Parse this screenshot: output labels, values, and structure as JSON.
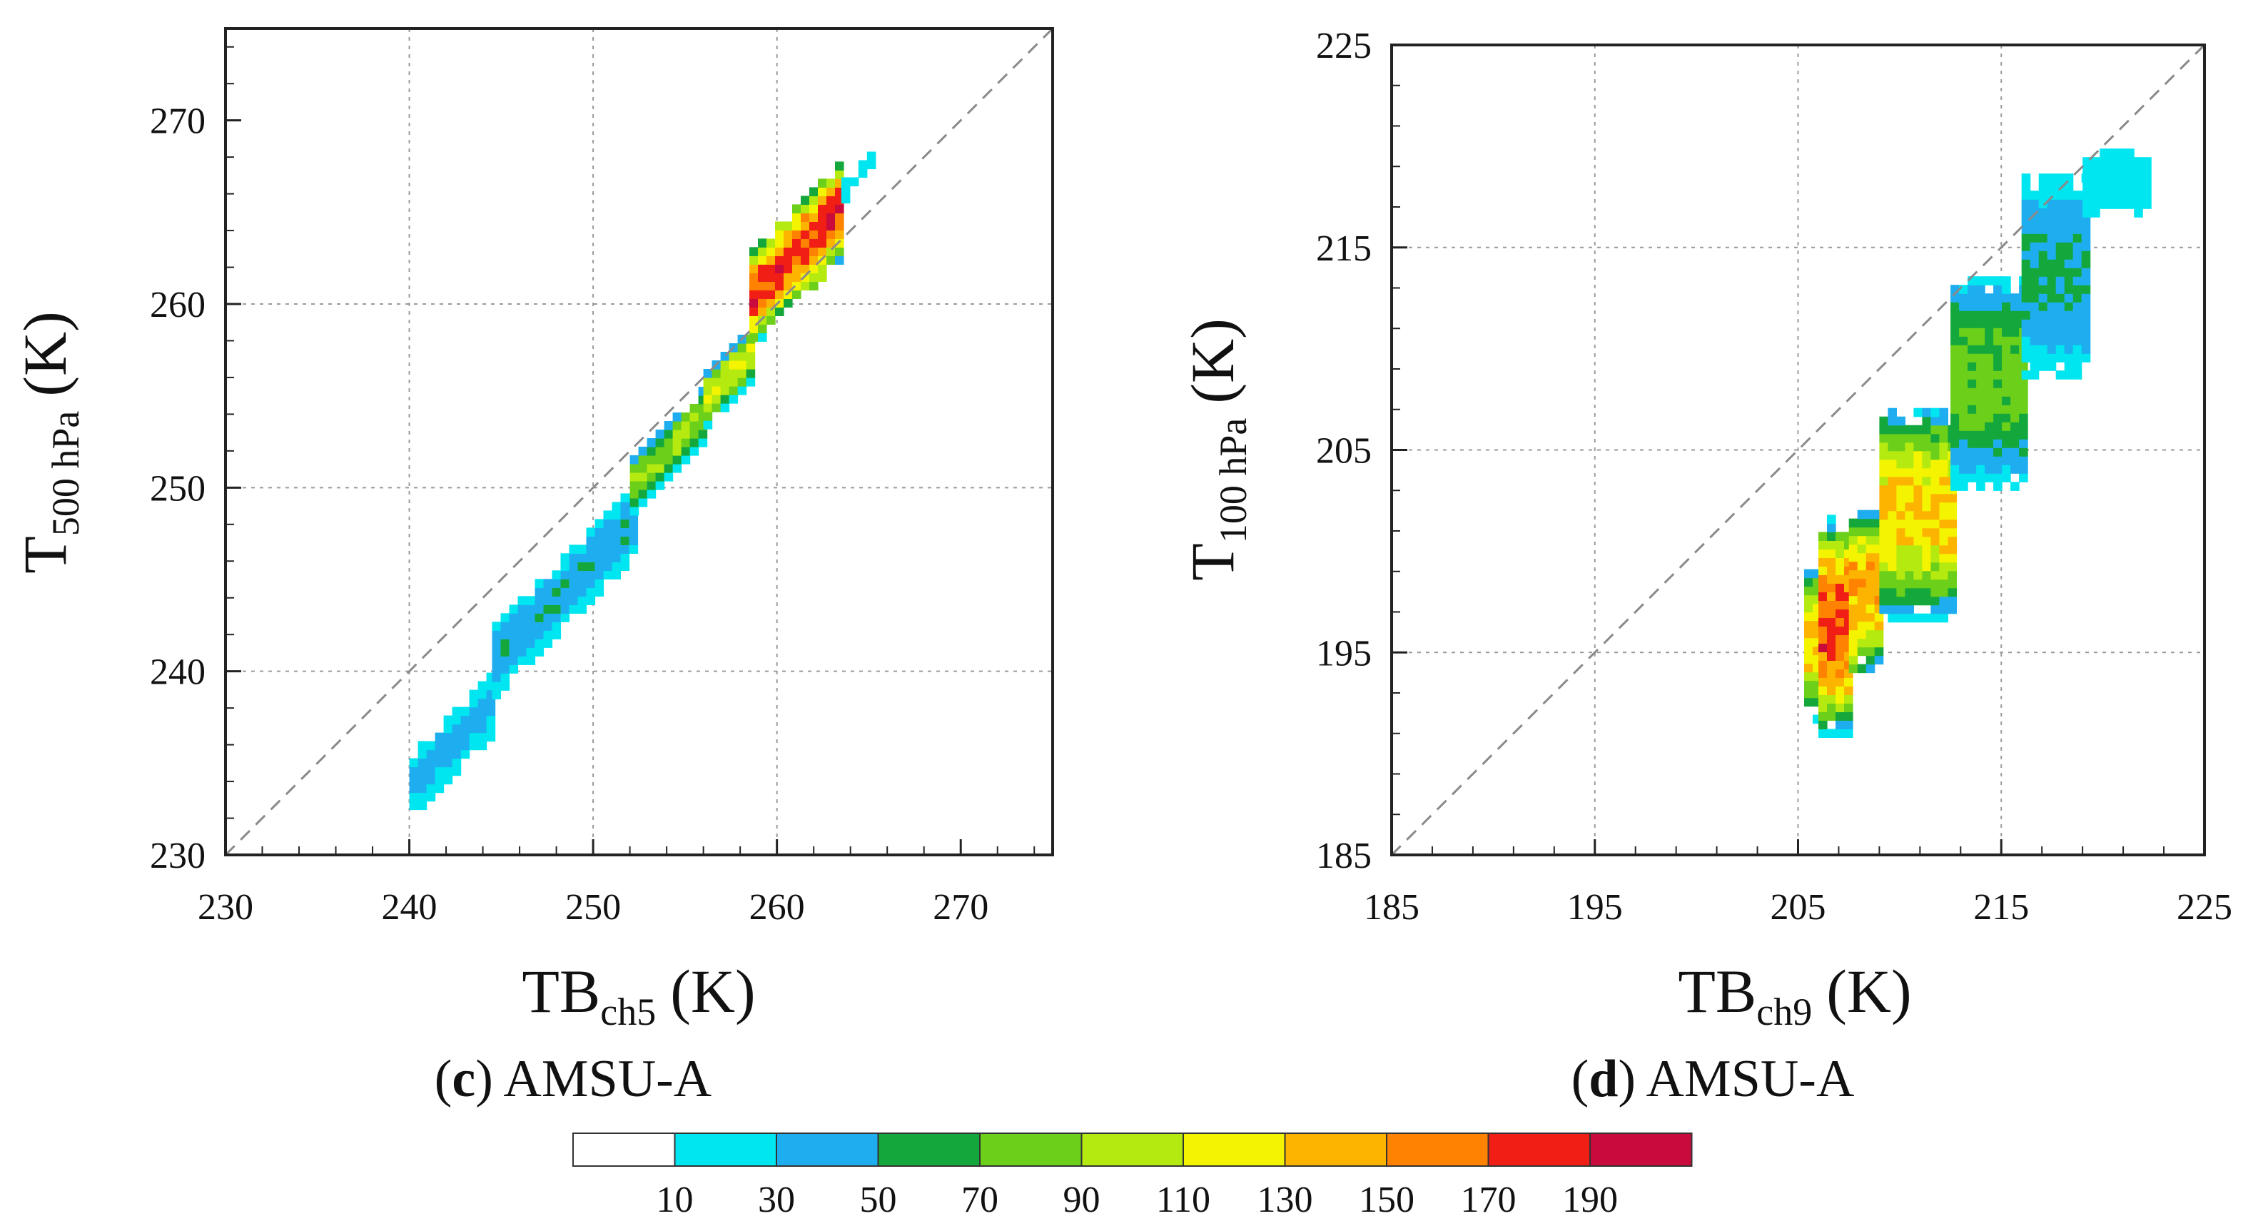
{
  "chart_data": [
    {
      "id": "c",
      "type": "heatmap",
      "panel_letter": "c",
      "panel_title": "AMSU-A",
      "xlabel_main": "TB",
      "xlabel_sub": "ch5",
      "xlabel_unit": "(K)",
      "ylabel_main": "T",
      "ylabel_sub": "500 hPa",
      "ylabel_unit": "(K)",
      "xlim": [
        230,
        275
      ],
      "ylim": [
        230,
        275
      ],
      "xticks": [
        230,
        240,
        250,
        260,
        270
      ],
      "yticks": [
        230,
        240,
        250,
        260,
        270
      ],
      "grid": true,
      "reference_line": "1:1 dashed",
      "density_bands": [
        {
          "x": [
            240.0,
            244.5
          ],
          "y_low_offset": -8.0,
          "y_high_offset": -4.5,
          "peak_count": 45
        },
        {
          "x": [
            244.5,
            252.0
          ],
          "y_low_offset": -6.0,
          "y_high_offset": -2.0,
          "peak_count": 55
        },
        {
          "x": [
            252.0,
            256.0
          ],
          "y_low_offset": -3.5,
          "y_high_offset": -0.5,
          "peak_count": 110
        },
        {
          "x": [
            256.0,
            258.5
          ],
          "y_low_offset": -2.8,
          "y_high_offset": 0.2,
          "peak_count": 125
        },
        {
          "x": [
            258.5,
            263.5
          ],
          "y_low_offset": -1.0,
          "y_high_offset": 4.5,
          "peak_count": 200
        },
        {
          "x": [
            263.5,
            265.0
          ],
          "y_low_offset": 2.0,
          "y_high_offset": 3.0,
          "peak_count": 20
        }
      ],
      "peak": {
        "x": 261.0,
        "y": 262.5,
        "count": 200
      }
    },
    {
      "id": "d",
      "type": "heatmap",
      "panel_letter": "d",
      "panel_title": "AMSU-A",
      "xlabel_main": "TB",
      "xlabel_sub": "ch9",
      "xlabel_unit": "(K)",
      "ylabel_main": "T",
      "ylabel_sub": "100 hPa",
      "ylabel_unit": "(K)",
      "xlim": [
        185,
        225
      ],
      "ylim": [
        185,
        225
      ],
      "xticks": [
        185,
        195,
        205,
        215,
        225
      ],
      "yticks": [
        185,
        195,
        205,
        215,
        225
      ],
      "grid": true,
      "reference_line": "1:1 dashed",
      "density_bands": [
        {
          "x": [
            205.3,
            206.0
          ],
          "y_low": 191.5,
          "y_high": 199.0,
          "peak_count": 150
        },
        {
          "x": [
            206.0,
            207.5
          ],
          "y_low": 190.8,
          "y_high": 201.5,
          "peak_count": 200
        },
        {
          "x": [
            207.5,
            209.0
          ],
          "y_low": 194.0,
          "y_high": 201.8,
          "peak_count": 170
        },
        {
          "x": [
            209.0,
            212.5
          ],
          "y_low": 196.5,
          "y_high": 207.0,
          "peak_count": 150
        },
        {
          "x": [
            212.5,
            216.0
          ],
          "y_low": 203.0,
          "y_high": 213.5,
          "peak_count": 90
        },
        {
          "x": [
            216.0,
            219.0
          ],
          "y_low": 208.5,
          "y_high": 218.5,
          "peak_count": 60
        },
        {
          "x": [
            219.0,
            222.0
          ],
          "y_low": 216.5,
          "y_high": 219.5,
          "peak_count": 20
        }
      ],
      "peak": {
        "x": 206.6,
        "y": 196.0,
        "count": 200
      }
    }
  ],
  "colorbar": {
    "tick_labels": [
      "10",
      "30",
      "50",
      "70",
      "90",
      "110",
      "130",
      "150",
      "170",
      "190"
    ],
    "colors": [
      "#ffffff",
      "#00e6f0",
      "#1eaef0",
      "#14a83c",
      "#6ccf1a",
      "#b4ea10",
      "#f4f400",
      "#fcb400",
      "#ff8200",
      "#f01e14",
      "#c80a3c"
    ]
  },
  "style": {
    "grid_color": "#9a9a9a",
    "axis_color": "#222222",
    "ref_line_color": "#8a8a8a"
  }
}
